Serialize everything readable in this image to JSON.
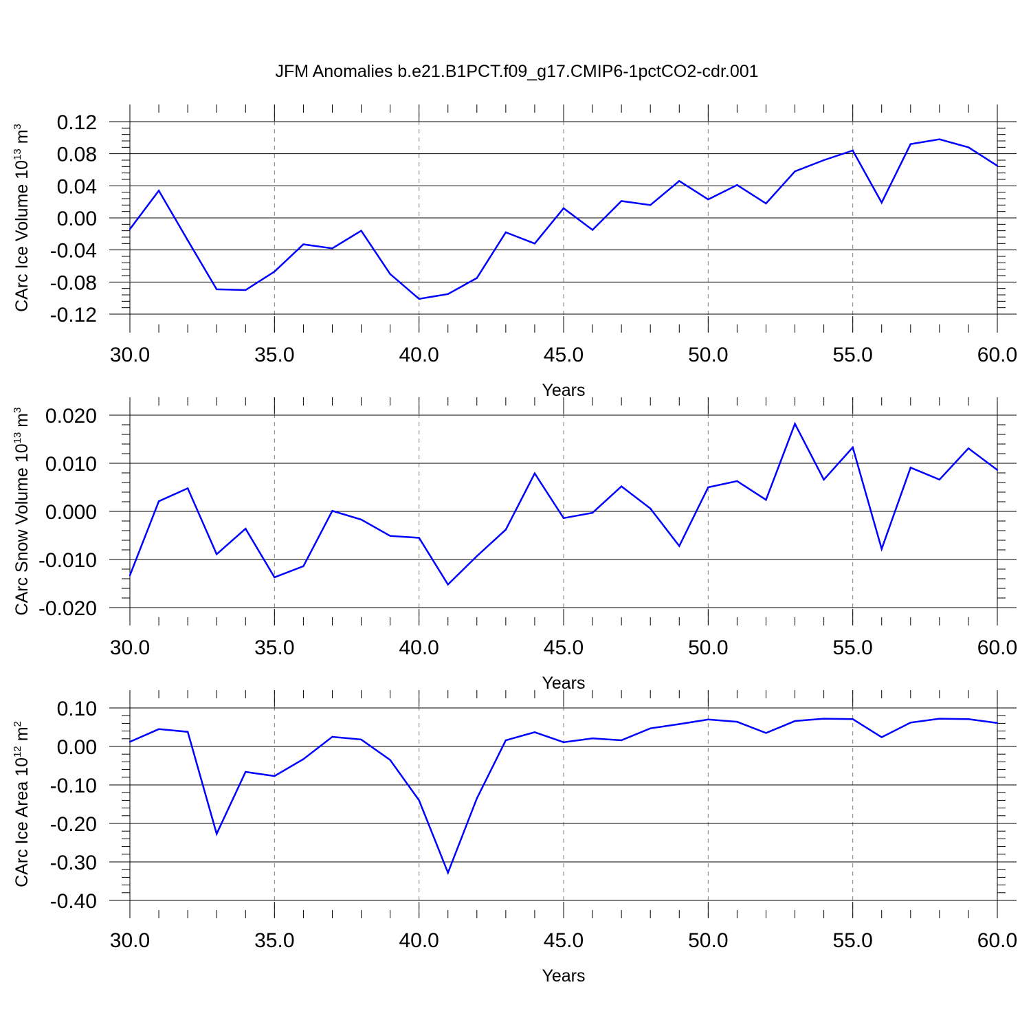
{
  "title": "JFM Anomalies b.e21.B1PCT.f09_g17.CMIP6-1pctCO2-cdr.001",
  "colors": {
    "line": "#0000ff",
    "grid": "#7f7f7f",
    "axis": "#000000"
  },
  "chart_data": [
    {
      "type": "line",
      "xlabel": "Years",
      "ylabel": {
        "base": "CArc Ice Volume 10",
        "exp": "13",
        "unit": " m",
        "unit_exp": "3"
      },
      "xlim": [
        30,
        60
      ],
      "ylim": [
        -0.12,
        0.12
      ],
      "grid_x": true,
      "xticks": [
        30,
        35,
        40,
        45,
        50,
        55,
        60
      ],
      "xtick_labels": [
        "30.0",
        "35.0",
        "40.0",
        "45.0",
        "50.0",
        "55.0",
        "60.0"
      ],
      "yticks": [
        -0.12,
        -0.08,
        -0.04,
        0.0,
        0.04,
        0.08,
        0.12
      ],
      "ytick_labels": [
        "-0.12",
        "-0.08",
        "-0.04",
        "0.00",
        "0.04",
        "0.08",
        "0.12"
      ],
      "x": [
        30,
        31,
        32,
        33,
        34,
        35,
        36,
        37,
        38,
        39,
        40,
        41,
        42,
        43,
        44,
        45,
        46,
        47,
        48,
        49,
        50,
        51,
        52,
        53,
        54,
        55,
        56,
        57,
        58,
        59,
        60
      ],
      "series": [
        {
          "values": [
            -0.014,
            0.034,
            -0.028,
            -0.089,
            -0.09,
            -0.067,
            -0.033,
            -0.038,
            -0.016,
            -0.07,
            -0.101,
            -0.095,
            -0.075,
            -0.018,
            -0.032,
            0.012,
            -0.015,
            0.021,
            0.016,
            0.046,
            0.023,
            0.041,
            0.018,
            0.058,
            0.072,
            0.084,
            0.019,
            0.092,
            0.098,
            0.088,
            0.065
          ]
        }
      ]
    },
    {
      "type": "line",
      "xlabel": "Years",
      "ylabel": {
        "base": "CArc Snow Volume 10",
        "exp": "13",
        "unit": " m",
        "unit_exp": "3"
      },
      "xlim": [
        30,
        60
      ],
      "ylim": [
        -0.02,
        0.02
      ],
      "grid_x": true,
      "xticks": [
        30,
        35,
        40,
        45,
        50,
        55,
        60
      ],
      "xtick_labels": [
        "30.0",
        "35.0",
        "40.0",
        "45.0",
        "50.0",
        "55.0",
        "60.0"
      ],
      "yticks": [
        -0.02,
        -0.01,
        0.0,
        0.01,
        0.02
      ],
      "ytick_labels": [
        "-0.020",
        "-0.010",
        "0.000",
        "0.010",
        "0.020"
      ],
      "x": [
        30,
        31,
        32,
        33,
        34,
        35,
        36,
        37,
        38,
        39,
        40,
        41,
        42,
        43,
        44,
        45,
        46,
        47,
        48,
        49,
        50,
        51,
        52,
        53,
        54,
        55,
        56,
        57,
        58,
        59,
        60
      ],
      "series": [
        {
          "values": [
            -0.0133,
            0.0021,
            0.0048,
            -0.0089,
            -0.0036,
            -0.0137,
            -0.0114,
            0.0001,
            -0.0017,
            -0.0051,
            -0.0055,
            -0.0152,
            -0.0093,
            -0.0038,
            0.0079,
            -0.0014,
            -0.0003,
            0.0052,
            0.0006,
            -0.0072,
            0.005,
            0.0063,
            0.0024,
            0.0182,
            0.0066,
            0.0133,
            -0.0078,
            0.0091,
            0.0066,
            0.0131,
            0.0086
          ]
        }
      ]
    },
    {
      "type": "line",
      "xlabel": "Years",
      "ylabel": {
        "base": "CArc Ice Area 10",
        "exp": "12",
        "unit": " m",
        "unit_exp": "2"
      },
      "xlim": [
        30,
        60
      ],
      "ylim": [
        -0.4,
        0.1
      ],
      "grid_x": true,
      "xticks": [
        30,
        35,
        40,
        45,
        50,
        55,
        60
      ],
      "xtick_labels": [
        "30.0",
        "35.0",
        "40.0",
        "45.0",
        "50.0",
        "55.0",
        "60.0"
      ],
      "yticks": [
        -0.4,
        -0.3,
        -0.2,
        -0.1,
        0.0,
        0.1
      ],
      "ytick_labels": [
        "-0.40",
        "-0.30",
        "-0.20",
        "-0.10",
        "0.00",
        "0.10"
      ],
      "x": [
        30,
        31,
        32,
        33,
        34,
        35,
        36,
        37,
        38,
        39,
        40,
        41,
        42,
        43,
        44,
        45,
        46,
        47,
        48,
        49,
        50,
        51,
        52,
        53,
        54,
        55,
        56,
        57,
        58,
        59,
        60
      ],
      "series": [
        {
          "values": [
            0.012,
            0.045,
            0.038,
            -0.227,
            -0.066,
            -0.077,
            -0.033,
            0.025,
            0.018,
            -0.035,
            -0.14,
            -0.328,
            -0.135,
            0.016,
            0.037,
            0.011,
            0.021,
            0.016,
            0.047,
            0.058,
            0.07,
            0.064,
            0.035,
            0.066,
            0.072,
            0.071,
            0.024,
            0.062,
            0.072,
            0.071,
            0.061
          ]
        }
      ]
    }
  ]
}
